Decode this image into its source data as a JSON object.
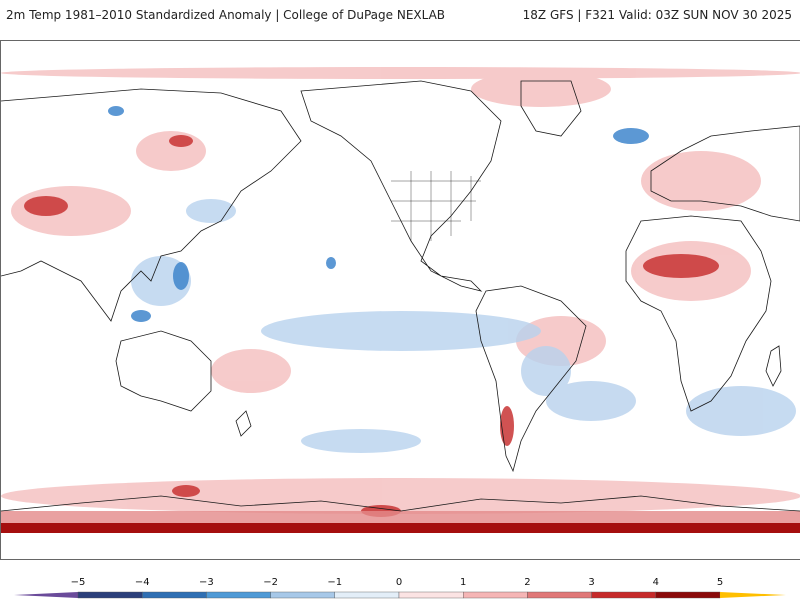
{
  "header": {
    "title_left": "2m Temp 1981–2010 Standardized Anomaly | College of DuPage NEXLAB",
    "title_right": "18Z GFS | F321 Valid: 03Z SUN NOV 30 2025"
  },
  "colorbar": {
    "ticks": [
      "−5",
      "−4",
      "−3",
      "−2",
      "−1",
      "0",
      "1",
      "2",
      "3",
      "4",
      "5"
    ],
    "colors": {
      "m5": "#6a4b9a",
      "m4": "#2b3f7a",
      "m3": "#2f6fb3",
      "m2": "#4f9ad6",
      "m1": "#a7c8e8",
      "m0": "#e3eef8",
      "p0": "#fbe3e3",
      "p1": "#f5b5b5",
      "p2": "#e07878",
      "p3": "#c62a2a",
      "p4": "#8a0a0a",
      "p5": "#ffbf00"
    }
  },
  "map": {
    "land_outline_color": "#1a1a1a",
    "warm_color": "#e8898a",
    "cool_color": "#8fb8e2"
  }
}
